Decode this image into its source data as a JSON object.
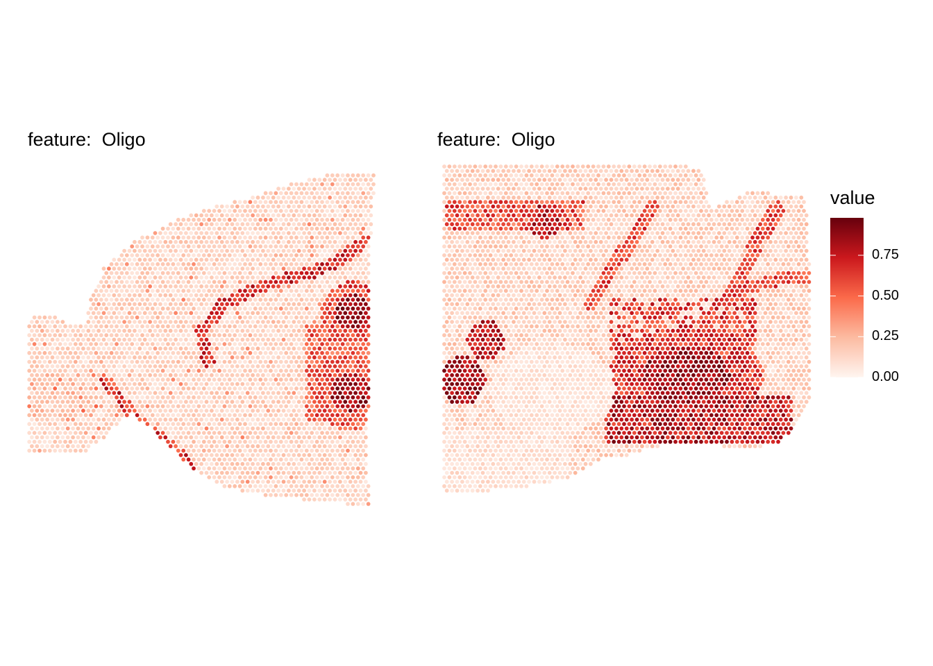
{
  "chart_data": [
    {
      "type": "spatial-scatter",
      "title": "feature:  Oligo",
      "spots": "hexagonal spot grid over a hemibrain tissue section; values mostly 0.05–0.3 with a high-value fiber tract band (≈0.6–0.98)",
      "value_range": [
        0,
        0.98
      ]
    },
    {
      "type": "spatial-scatter",
      "title": "feature:  Oligo",
      "spots": "hexagonal spot grid over a posterior brain section; high values (≈0.7–0.98) in the ventral/central white-matter region",
      "value_range": [
        0,
        0.98
      ]
    }
  ],
  "legend": {
    "title": "value",
    "ticks": [
      "0.75",
      "0.50",
      "0.25",
      "0.00"
    ],
    "tick_values": [
      0.75,
      0.5,
      0.25,
      0.0
    ],
    "limits": [
      0,
      0.98
    ],
    "colors": [
      "#fff5f0",
      "#fcbba1",
      "#fb6a4a",
      "#cb181d",
      "#67000d"
    ]
  }
}
